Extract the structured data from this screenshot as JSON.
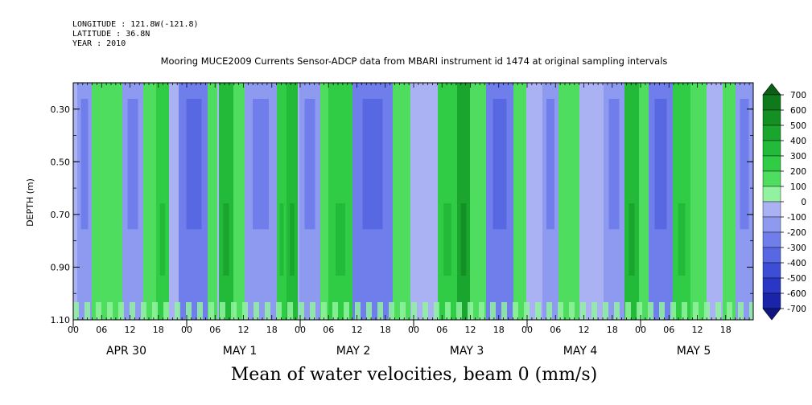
{
  "header": {
    "longitude": "LONGITUDE : 121.8W(-121.8)",
    "latitude": "LATITUDE : 36.8N",
    "year": "YEAR : 2010"
  },
  "chart_data": {
    "type": "heatmap",
    "title": "Mooring MUCE2009 Currents Sensor-ADCP data from MBARI instrument id 1474 at original sampling intervals",
    "xlabel": "Mean of water velocities, beam 0 (mm/s)",
    "ylabel": "DEPTH (m)",
    "ylim": [
      1.1,
      0.2
    ],
    "y_ticks": [
      "0.30",
      "0.50",
      "0.70",
      "0.90",
      "1.10"
    ],
    "x_hour_ticks": [
      "00",
      "06",
      "12",
      "18",
      "00",
      "06",
      "12",
      "18",
      "00",
      "06",
      "12",
      "18",
      "00",
      "06",
      "12",
      "18",
      "00",
      "06",
      "12",
      "18",
      "00",
      "06",
      "12",
      "18"
    ],
    "x_day_labels": [
      "APR 30",
      "MAY  1",
      "MAY  2",
      "MAY  3",
      "MAY  4",
      "MAY  5"
    ],
    "colorbar_levels": [
      "700",
      "600",
      "500",
      "400",
      "300",
      "200",
      "100",
      "0",
      "-100",
      "-200",
      "-300",
      "-400",
      "-500",
      "-600",
      "-700"
    ],
    "colorbar_colors": [
      "#0b5e14",
      "#0f7a1c",
      "#138f24",
      "#1aa52e",
      "#22ba38",
      "#30cc46",
      "#4fdd5f",
      "#92f2a0",
      "#aab2f4",
      "#8e9af0",
      "#6f7eea",
      "#5868e2",
      "#3d4dd6",
      "#2a36c4",
      "#1a24a8",
      "#0f1680"
    ],
    "colorbar_ticks": [
      "700",
      "600",
      "500",
      "400",
      "300",
      "200",
      "100",
      "0",
      "-100",
      "-200",
      "-300",
      "-400",
      "-500",
      "-600",
      "-700"
    ]
  }
}
